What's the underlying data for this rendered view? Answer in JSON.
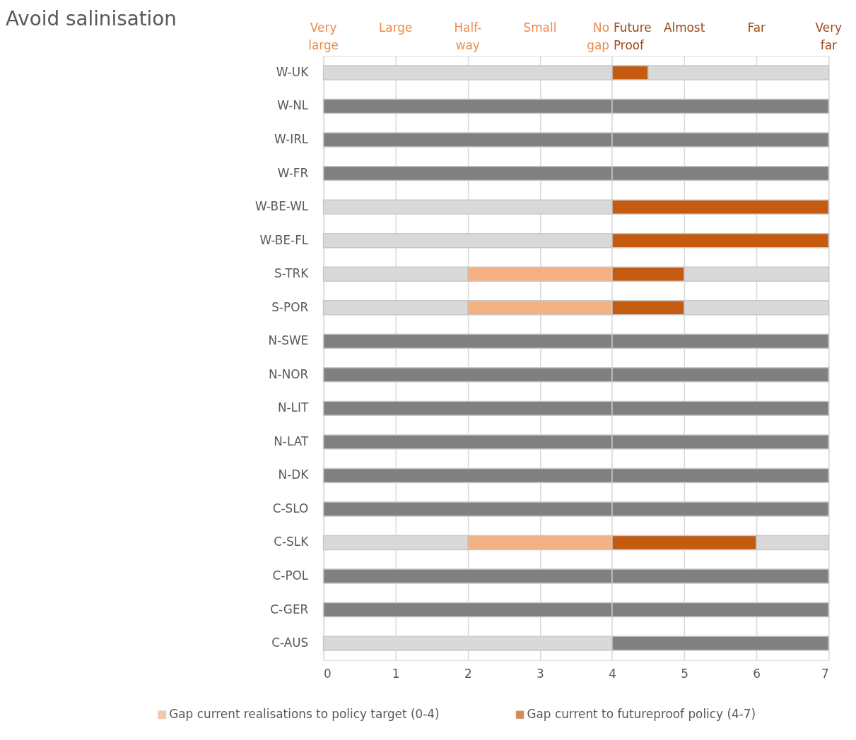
{
  "chart_data": {
    "type": "bar",
    "orientation": "horizontal",
    "stacked": true,
    "title": "Avoid salinisation",
    "categories": [
      "W-UK",
      "W-NL",
      "W-IRL",
      "W-FR",
      "W-BE-WL",
      "W-BE-FL",
      "S-TRK",
      "S-POR",
      "N-SWE",
      "N-NOR",
      "N-LIT",
      "N-LAT",
      "N-DK",
      "C-SLO",
      "C-SLK",
      "C-POL",
      "C-GER",
      "C-AUS"
    ],
    "series": [
      {
        "color": "#d9d9d9",
        "values": [
          4,
          null,
          null,
          null,
          4,
          4,
          2,
          2,
          null,
          null,
          null,
          null,
          null,
          null,
          2,
          null,
          null,
          4
        ]
      },
      {
        "color": "#808080",
        "values": [
          null,
          4,
          4,
          4,
          null,
          null,
          null,
          null,
          4,
          4,
          4,
          4,
          4,
          4,
          null,
          4,
          4,
          null
        ]
      },
      {
        "name": "Gap current realisations to policy target (0-4)",
        "color": "#f4b183",
        "values": [
          null,
          null,
          null,
          null,
          null,
          null,
          2,
          2,
          null,
          null,
          null,
          null,
          null,
          null,
          2,
          null,
          null,
          null
        ]
      },
      {
        "name": "Gap current to futureproof policy (4-7)",
        "color": "#c55a11",
        "values": [
          0.5,
          null,
          null,
          null,
          3,
          3,
          1,
          1,
          null,
          null,
          null,
          null,
          null,
          null,
          2,
          null,
          null,
          null
        ]
      },
      {
        "color": "#808080",
        "values": [
          null,
          3,
          3,
          3,
          null,
          null,
          null,
          null,
          3,
          3,
          3,
          3,
          3,
          3,
          null,
          3,
          3,
          3
        ]
      },
      {
        "color": "#d9d9d9",
        "values": [
          2.5,
          null,
          null,
          null,
          null,
          null,
          2,
          2,
          null,
          null,
          null,
          null,
          null,
          null,
          1,
          null,
          null,
          null
        ]
      }
    ],
    "xlim": [
      0,
      7
    ],
    "xticks": [
      0,
      1,
      2,
      3,
      4,
      5,
      6,
      7
    ],
    "annotations": [
      "Very large",
      "Large",
      "Half-way",
      "Small",
      "No gap",
      "Future Proof",
      "Almost",
      "Far",
      "Very far"
    ],
    "grid": "x",
    "legend": "bottom"
  }
}
